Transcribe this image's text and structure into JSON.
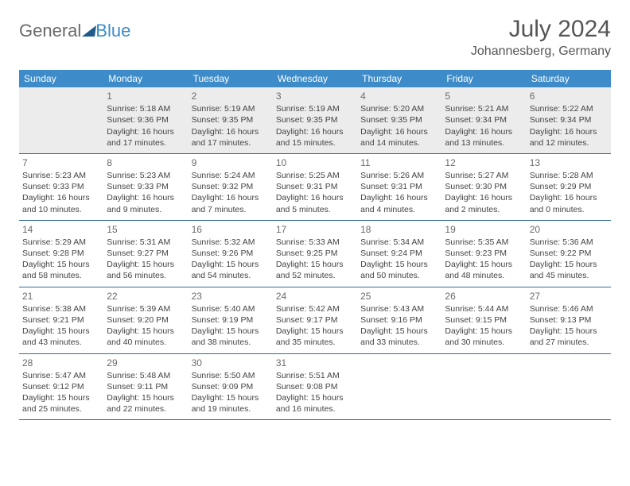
{
  "logo": {
    "general": "General",
    "blue": "Blue"
  },
  "title": "July 2024",
  "subtitle": "Johannesberg, Germany",
  "dow": [
    "Sunday",
    "Monday",
    "Tuesday",
    "Wednesday",
    "Thursday",
    "Friday",
    "Saturday"
  ],
  "header_bg": "#3d8bc8",
  "divider_color": "#2f6aa0",
  "first_row_bg": "#ececec",
  "weeks": [
    [
      null,
      {
        "d": "1",
        "sr": "5:18 AM",
        "ss": "9:36 PM",
        "dl": "16 hours and 17 minutes."
      },
      {
        "d": "2",
        "sr": "5:19 AM",
        "ss": "9:35 PM",
        "dl": "16 hours and 17 minutes."
      },
      {
        "d": "3",
        "sr": "5:19 AM",
        "ss": "9:35 PM",
        "dl": "16 hours and 15 minutes."
      },
      {
        "d": "4",
        "sr": "5:20 AM",
        "ss": "9:35 PM",
        "dl": "16 hours and 14 minutes."
      },
      {
        "d": "5",
        "sr": "5:21 AM",
        "ss": "9:34 PM",
        "dl": "16 hours and 13 minutes."
      },
      {
        "d": "6",
        "sr": "5:22 AM",
        "ss": "9:34 PM",
        "dl": "16 hours and 12 minutes."
      }
    ],
    [
      {
        "d": "7",
        "sr": "5:23 AM",
        "ss": "9:33 PM",
        "dl": "16 hours and 10 minutes."
      },
      {
        "d": "8",
        "sr": "5:23 AM",
        "ss": "9:33 PM",
        "dl": "16 hours and 9 minutes."
      },
      {
        "d": "9",
        "sr": "5:24 AM",
        "ss": "9:32 PM",
        "dl": "16 hours and 7 minutes."
      },
      {
        "d": "10",
        "sr": "5:25 AM",
        "ss": "9:31 PM",
        "dl": "16 hours and 5 minutes."
      },
      {
        "d": "11",
        "sr": "5:26 AM",
        "ss": "9:31 PM",
        "dl": "16 hours and 4 minutes."
      },
      {
        "d": "12",
        "sr": "5:27 AM",
        "ss": "9:30 PM",
        "dl": "16 hours and 2 minutes."
      },
      {
        "d": "13",
        "sr": "5:28 AM",
        "ss": "9:29 PM",
        "dl": "16 hours and 0 minutes."
      }
    ],
    [
      {
        "d": "14",
        "sr": "5:29 AM",
        "ss": "9:28 PM",
        "dl": "15 hours and 58 minutes."
      },
      {
        "d": "15",
        "sr": "5:31 AM",
        "ss": "9:27 PM",
        "dl": "15 hours and 56 minutes."
      },
      {
        "d": "16",
        "sr": "5:32 AM",
        "ss": "9:26 PM",
        "dl": "15 hours and 54 minutes."
      },
      {
        "d": "17",
        "sr": "5:33 AM",
        "ss": "9:25 PM",
        "dl": "15 hours and 52 minutes."
      },
      {
        "d": "18",
        "sr": "5:34 AM",
        "ss": "9:24 PM",
        "dl": "15 hours and 50 minutes."
      },
      {
        "d": "19",
        "sr": "5:35 AM",
        "ss": "9:23 PM",
        "dl": "15 hours and 48 minutes."
      },
      {
        "d": "20",
        "sr": "5:36 AM",
        "ss": "9:22 PM",
        "dl": "15 hours and 45 minutes."
      }
    ],
    [
      {
        "d": "21",
        "sr": "5:38 AM",
        "ss": "9:21 PM",
        "dl": "15 hours and 43 minutes."
      },
      {
        "d": "22",
        "sr": "5:39 AM",
        "ss": "9:20 PM",
        "dl": "15 hours and 40 minutes."
      },
      {
        "d": "23",
        "sr": "5:40 AM",
        "ss": "9:19 PM",
        "dl": "15 hours and 38 minutes."
      },
      {
        "d": "24",
        "sr": "5:42 AM",
        "ss": "9:17 PM",
        "dl": "15 hours and 35 minutes."
      },
      {
        "d": "25",
        "sr": "5:43 AM",
        "ss": "9:16 PM",
        "dl": "15 hours and 33 minutes."
      },
      {
        "d": "26",
        "sr": "5:44 AM",
        "ss": "9:15 PM",
        "dl": "15 hours and 30 minutes."
      },
      {
        "d": "27",
        "sr": "5:46 AM",
        "ss": "9:13 PM",
        "dl": "15 hours and 27 minutes."
      }
    ],
    [
      {
        "d": "28",
        "sr": "5:47 AM",
        "ss": "9:12 PM",
        "dl": "15 hours and 25 minutes."
      },
      {
        "d": "29",
        "sr": "5:48 AM",
        "ss": "9:11 PM",
        "dl": "15 hours and 22 minutes."
      },
      {
        "d": "30",
        "sr": "5:50 AM",
        "ss": "9:09 PM",
        "dl": "15 hours and 19 minutes."
      },
      {
        "d": "31",
        "sr": "5:51 AM",
        "ss": "9:08 PM",
        "dl": "15 hours and 16 minutes."
      },
      null,
      null,
      null
    ]
  ],
  "labels": {
    "sunrise": "Sunrise:",
    "sunset": "Sunset:",
    "daylight": "Daylight:"
  }
}
